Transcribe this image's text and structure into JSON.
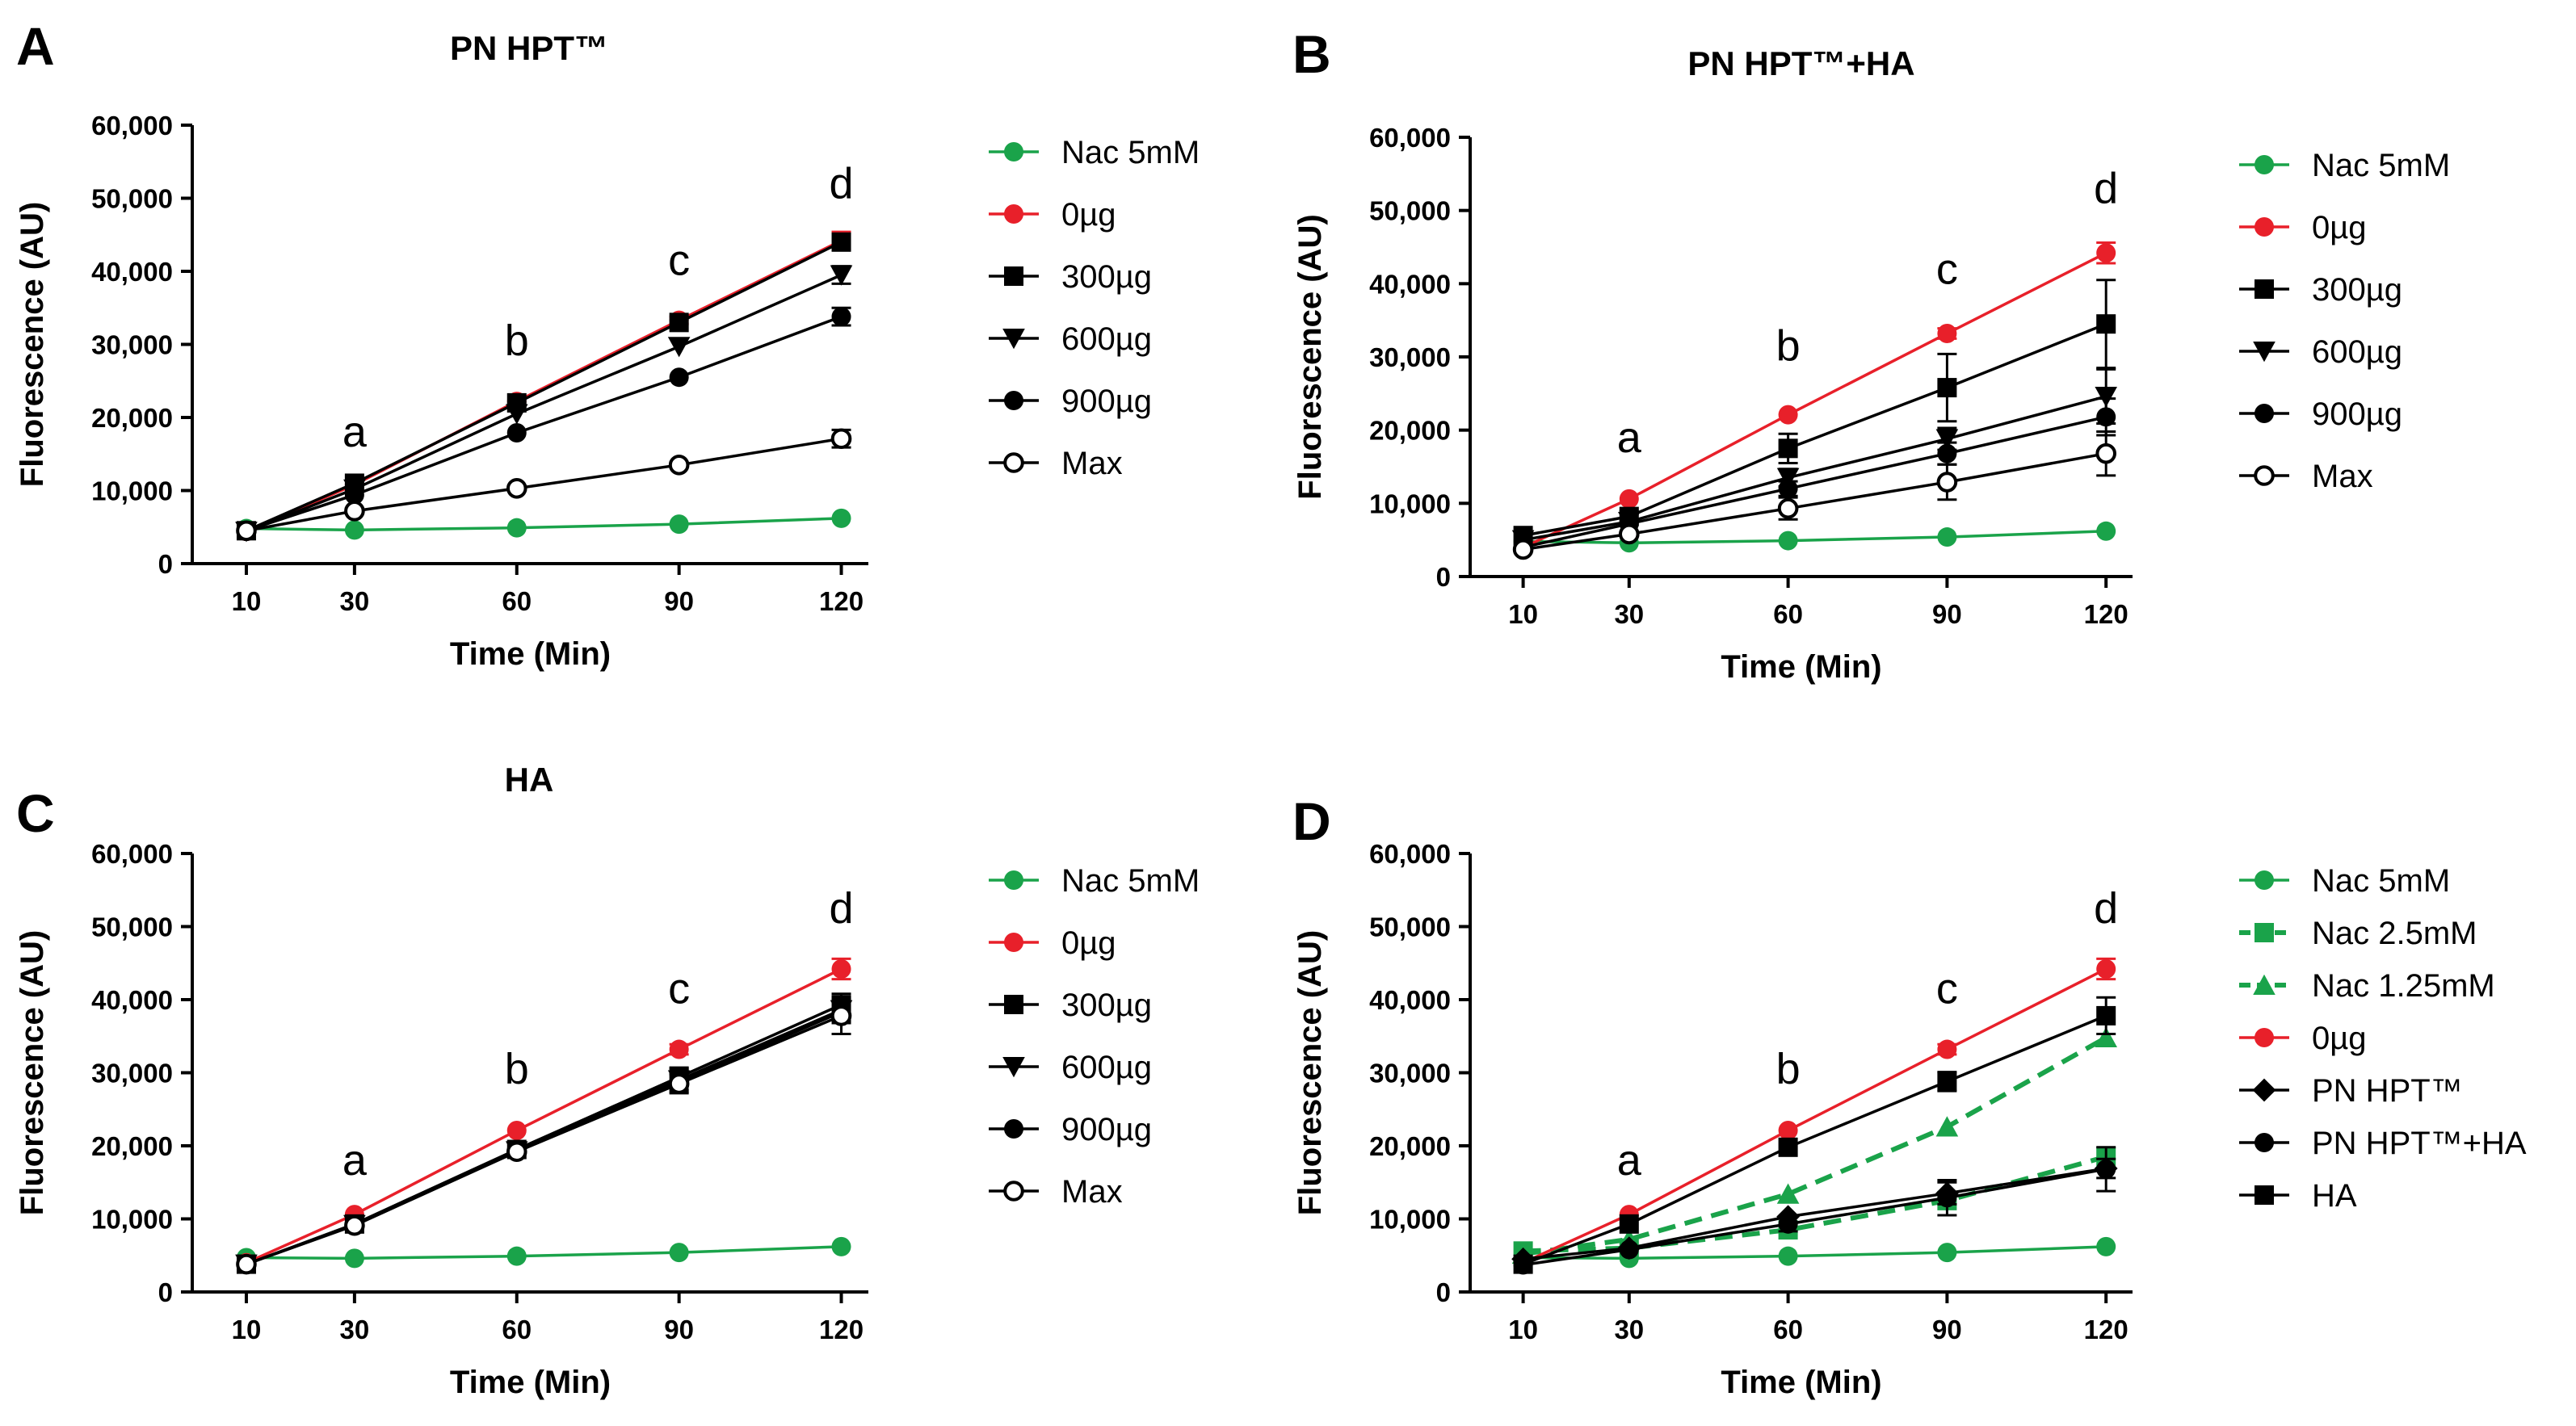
{
  "chart_data": [
    {
      "type": "line",
      "panel_label": "A",
      "title": "PN HPT™",
      "xlabel": "Time (Min)",
      "ylabel": "Fluorescence (AU)",
      "x": [
        10,
        30,
        60,
        90,
        120
      ],
      "x_tick_labels": [
        "10",
        "30",
        "60",
        "90",
        "120"
      ],
      "xlim": [
        0,
        125
      ],
      "ylim": [
        0,
        60000
      ],
      "y_tick_labels": [
        "0",
        "10,000",
        "20,000",
        "30,000",
        "40,000",
        "50,000",
        "60,000"
      ],
      "annotations": [
        {
          "text": "a",
          "x": 30,
          "y": 16000
        },
        {
          "text": "b",
          "x": 60,
          "y": 28500
        },
        {
          "text": "c",
          "x": 90,
          "y": 39500
        },
        {
          "text": "d",
          "x": 120,
          "y": 50000
        }
      ],
      "series": [
        {
          "name": "Nac 5mM",
          "marker": "circle-filled",
          "color": "#1aa34a",
          "dash": "solid",
          "values": [
            4800,
            4600,
            4900,
            5400,
            6200
          ],
          "errors": [
            0,
            0,
            0,
            0,
            0
          ]
        },
        {
          "name": "0µg",
          "marker": "circle-filled",
          "color": "#e8202a",
          "dash": "solid",
          "values": [
            4400,
            10800,
            22200,
            33300,
            44200
          ],
          "errors": [
            0,
            0,
            0,
            500,
            1200
          ]
        },
        {
          "name": "300µg",
          "marker": "square",
          "color": "#000000",
          "dash": "solid",
          "values": [
            4500,
            11000,
            22000,
            33000,
            44000
          ],
          "errors": [
            0,
            0,
            0,
            0,
            0
          ]
        },
        {
          "name": "600µg",
          "marker": "triangle-down",
          "color": "#000000",
          "dash": "solid",
          "values": [
            4400,
            10200,
            20500,
            29700,
            39500
          ],
          "errors": [
            0,
            0,
            0,
            0,
            1200
          ]
        },
        {
          "name": "900µg",
          "marker": "circle-filled",
          "color": "#000000",
          "dash": "solid",
          "values": [
            4500,
            9400,
            17900,
            25500,
            33800
          ],
          "errors": [
            0,
            0,
            0,
            0,
            1200
          ]
        },
        {
          "name": "Max",
          "marker": "circle-open",
          "color": "#000000",
          "dash": "solid",
          "values": [
            4500,
            7200,
            10300,
            13500,
            17100
          ],
          "errors": [
            0,
            0,
            0,
            0,
            1200
          ]
        }
      ]
    },
    {
      "type": "line",
      "panel_label": "B",
      "title": "PN HPT™+HA",
      "xlabel": "Time (Min)",
      "ylabel": "Fluorescence (AU)",
      "x": [
        10,
        30,
        60,
        90,
        120
      ],
      "x_tick_labels": [
        "10",
        "30",
        "60",
        "90",
        "120"
      ],
      "xlim": [
        0,
        125
      ],
      "ylim": [
        0,
        60000
      ],
      "y_tick_labels": [
        "0",
        "10,000",
        "20,000",
        "30,000",
        "40,000",
        "50,000",
        "60,000"
      ],
      "annotations": [
        {
          "text": "a",
          "x": 30,
          "y": 17000
        },
        {
          "text": "b",
          "x": 60,
          "y": 29500
        },
        {
          "text": "c",
          "x": 90,
          "y": 40000
        },
        {
          "text": "d",
          "x": 120,
          "y": 51000
        }
      ],
      "series": [
        {
          "name": "Nac 5mM",
          "marker": "circle-filled",
          "color": "#1aa34a",
          "dash": "solid",
          "values": [
            4800,
            4600,
            4900,
            5400,
            6200
          ],
          "errors": [
            0,
            0,
            0,
            0,
            0
          ]
        },
        {
          "name": "0µg",
          "marker": "circle-filled",
          "color": "#e8202a",
          "dash": "solid",
          "values": [
            4000,
            10600,
            22100,
            33200,
            44200
          ],
          "errors": [
            0,
            0,
            0,
            700,
            1400
          ]
        },
        {
          "name": "300µg",
          "marker": "square",
          "color": "#000000",
          "dash": "solid",
          "values": [
            5600,
            8200,
            17500,
            25800,
            34500
          ],
          "errors": [
            0,
            700,
            2000,
            4600,
            6000
          ]
        },
        {
          "name": "600µg",
          "marker": "triangle-down",
          "color": "#000000",
          "dash": "solid",
          "values": [
            5000,
            7500,
            13500,
            18800,
            24600
          ],
          "errors": [
            0,
            0,
            1200,
            1500,
            3700
          ]
        },
        {
          "name": "900µg",
          "marker": "circle-filled",
          "color": "#000000",
          "dash": "solid",
          "values": [
            4000,
            7200,
            12000,
            16800,
            21800
          ],
          "errors": [
            0,
            0,
            1000,
            1500,
            2500
          ]
        },
        {
          "name": "Max",
          "marker": "circle-open",
          "color": "#000000",
          "dash": "solid",
          "values": [
            3700,
            5800,
            9300,
            12900,
            16800
          ],
          "errors": [
            0,
            0,
            1500,
            2400,
            3000
          ]
        }
      ]
    },
    {
      "type": "line",
      "panel_label": "C",
      "title": "HA",
      "xlabel": "Time (Min)",
      "ylabel": "Fluorescence (AU)",
      "x": [
        10,
        30,
        60,
        90,
        120
      ],
      "x_tick_labels": [
        "10",
        "30",
        "60",
        "90",
        "120"
      ],
      "xlim": [
        0,
        125
      ],
      "ylim": [
        0,
        60000
      ],
      "y_tick_labels": [
        "0",
        "10,000",
        "20,000",
        "30,000",
        "40,000",
        "50,000",
        "60,000"
      ],
      "annotations": [
        {
          "text": "a",
          "x": 30,
          "y": 16000
        },
        {
          "text": "b",
          "x": 60,
          "y": 28500
        },
        {
          "text": "c",
          "x": 90,
          "y": 39500
        },
        {
          "text": "d",
          "x": 120,
          "y": 50500
        }
      ],
      "series": [
        {
          "name": "Nac 5mM",
          "marker": "circle-filled",
          "color": "#1aa34a",
          "dash": "solid",
          "values": [
            4700,
            4600,
            4900,
            5400,
            6200
          ],
          "errors": [
            0,
            0,
            0,
            0,
            0
          ]
        },
        {
          "name": "0µg",
          "marker": "circle-filled",
          "color": "#e8202a",
          "dash": "solid",
          "values": [
            4000,
            10600,
            22100,
            33200,
            44200
          ],
          "errors": [
            0,
            0,
            0,
            700,
            1400
          ]
        },
        {
          "name": "300µg",
          "marker": "square",
          "color": "#000000",
          "dash": "solid",
          "values": [
            3800,
            9300,
            19500,
            29400,
            39300
          ],
          "errors": [
            0,
            0,
            0,
            1300,
            1500
          ]
        },
        {
          "name": "600µg",
          "marker": "triangle-down",
          "color": "#000000",
          "dash": "solid",
          "values": [
            3800,
            9200,
            19300,
            29000,
            38600
          ],
          "errors": [
            0,
            0,
            0,
            1300,
            1500
          ]
        },
        {
          "name": "900µg",
          "marker": "circle-filled",
          "color": "#000000",
          "dash": "solid",
          "values": [
            3800,
            9200,
            19200,
            28700,
            38300
          ],
          "errors": [
            0,
            0,
            0,
            1300,
            1500
          ]
        },
        {
          "name": "Max",
          "marker": "circle-open",
          "color": "#000000",
          "dash": "solid",
          "values": [
            3800,
            9100,
            19200,
            28500,
            37800
          ],
          "errors": [
            0,
            0,
            0,
            1300,
            2500
          ]
        }
      ]
    },
    {
      "type": "line",
      "panel_label": "D",
      "title": "",
      "xlabel": "Time (Min)",
      "ylabel": "Fluorescence (AU)",
      "x": [
        10,
        30,
        60,
        90,
        120
      ],
      "x_tick_labels": [
        "10",
        "30",
        "60",
        "90",
        "120"
      ],
      "xlim": [
        0,
        125
      ],
      "ylim": [
        0,
        60000
      ],
      "y_tick_labels": [
        "0",
        "10,000",
        "20,000",
        "30,000",
        "40,000",
        "50,000",
        "60,000"
      ],
      "annotations": [
        {
          "text": "a",
          "x": 30,
          "y": 16000
        },
        {
          "text": "b",
          "x": 60,
          "y": 28500
        },
        {
          "text": "c",
          "x": 90,
          "y": 39500
        },
        {
          "text": "d",
          "x": 120,
          "y": 50500
        }
      ],
      "series": [
        {
          "name": "Nac 5mM",
          "marker": "circle-filled",
          "color": "#1aa34a",
          "dash": "solid",
          "values": [
            4700,
            4600,
            4900,
            5400,
            6200
          ],
          "errors": [
            0,
            0,
            0,
            0,
            0
          ]
        },
        {
          "name": "Nac 2.5mM",
          "marker": "square",
          "color": "#1aa34a",
          "dash": "dashed",
          "values": [
            5600,
            6000,
            8500,
            12500,
            18500
          ],
          "errors": [
            0,
            0,
            0,
            0,
            0
          ]
        },
        {
          "name": "Nac 1.25mM",
          "marker": "triangle-up",
          "color": "#1aa34a",
          "dash": "dashed",
          "values": [
            5200,
            7200,
            13400,
            22600,
            34800
          ],
          "errors": [
            0,
            0,
            0,
            0,
            0
          ]
        },
        {
          "name": "0µg",
          "marker": "circle-filled",
          "color": "#e8202a",
          "dash": "solid",
          "values": [
            4000,
            10600,
            22100,
            33200,
            44200
          ],
          "errors": [
            0,
            0,
            0,
            700,
            1400
          ]
        },
        {
          "name": "PN HPT™",
          "marker": "diamond",
          "color": "#000000",
          "dash": "solid",
          "values": [
            4500,
            6000,
            10300,
            13500,
            16900
          ],
          "errors": [
            0,
            0,
            0,
            1500,
            1300
          ]
        },
        {
          "name": "PN HPT™+HA",
          "marker": "circle-filled",
          "color": "#000000",
          "dash": "solid",
          "values": [
            3700,
            5800,
            9300,
            12900,
            16800
          ],
          "errors": [
            0,
            0,
            1000,
            2400,
            3000
          ]
        },
        {
          "name": "HA",
          "marker": "square",
          "color": "#000000",
          "dash": "solid",
          "values": [
            3800,
            9300,
            19800,
            28800,
            37800
          ],
          "errors": [
            0,
            0,
            0,
            1300,
            2500
          ]
        }
      ]
    }
  ]
}
